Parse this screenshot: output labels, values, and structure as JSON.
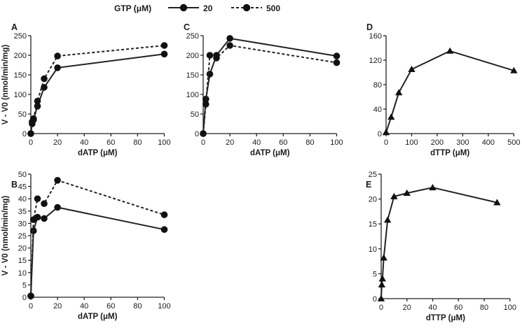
{
  "legend": {
    "title": "GTP (μM)",
    "entries": [
      {
        "label": "20",
        "style": "solid",
        "marker": "circle"
      },
      {
        "label": "500",
        "style": "dashed",
        "marker": "circle"
      }
    ]
  },
  "colors": {
    "ink": "#1a1a1a",
    "background": "#ffffff"
  },
  "chart_data": [
    {
      "panel": "A",
      "type": "line",
      "xlabel": "dATP (μM)",
      "ylabel": "V - V0 (nmol/min/mg)",
      "xlim": [
        0,
        105
      ],
      "ylim": [
        0,
        250
      ],
      "xticks": [
        0,
        20,
        40,
        60,
        80,
        100
      ],
      "yticks": [
        0,
        50,
        100,
        150,
        200,
        250
      ],
      "series": [
        {
          "name": "20",
          "style": "solid",
          "marker": "circle",
          "x": [
            0,
            1,
            2,
            5,
            10,
            20,
            100
          ],
          "y": [
            0,
            25,
            35,
            70,
            118,
            168,
            203
          ]
        },
        {
          "name": "500",
          "style": "dashed",
          "marker": "circle",
          "x": [
            0,
            1,
            2,
            5,
            10,
            20,
            100
          ],
          "y": [
            0,
            30,
            38,
            83,
            140,
            198,
            225
          ]
        }
      ]
    },
    {
      "panel": "B",
      "type": "line",
      "xlabel": "dATP (μM)",
      "ylabel": "V - V0 (nmol/min/mg)",
      "xlim": [
        0,
        105
      ],
      "ylim": [
        0,
        50
      ],
      "xticks": [
        0,
        20,
        40,
        60,
        80,
        100
      ],
      "yticks": [
        0,
        5,
        10,
        15,
        20,
        25,
        30,
        35,
        40,
        45,
        50
      ],
      "series": [
        {
          "name": "20",
          "style": "solid",
          "marker": "circle",
          "x": [
            0,
            2,
            5,
            10,
            20,
            100
          ],
          "y": [
            0.5,
            27,
            32.5,
            32,
            36.5,
            27.5
          ]
        },
        {
          "name": "500",
          "style": "dashed",
          "marker": "circle",
          "x": [
            0,
            2,
            5,
            10,
            20,
            100
          ],
          "y": [
            0.5,
            31.5,
            40,
            38,
            47.5,
            33.5
          ]
        }
      ]
    },
    {
      "panel": "C",
      "type": "line",
      "xlabel": "dATP (μM)",
      "ylabel": "",
      "xlim": [
        0,
        105
      ],
      "ylim": [
        0,
        250
      ],
      "xticks": [
        0,
        20,
        40,
        60,
        80,
        100
      ],
      "yticks": [
        0,
        50,
        100,
        150,
        200,
        250
      ],
      "series": [
        {
          "name": "20",
          "style": "solid",
          "marker": "circle",
          "x": [
            0,
            2,
            5,
            10,
            20,
            100
          ],
          "y": [
            0,
            88,
            152,
            200,
            243,
            198
          ]
        },
        {
          "name": "500",
          "style": "dashed",
          "marker": "circle",
          "x": [
            0,
            2,
            5,
            10,
            20,
            100
          ],
          "y": [
            0,
            75,
            200,
            193,
            225,
            181
          ]
        }
      ]
    },
    {
      "panel": "D",
      "type": "line",
      "xlabel": "dTTP (μM)",
      "ylabel": "",
      "xlim": [
        0,
        510
      ],
      "ylim": [
        0,
        160
      ],
      "xticks": [
        0,
        100,
        200,
        300,
        400,
        500
      ],
      "yticks": [
        0,
        40,
        80,
        120,
        160
      ],
      "series": [
        {
          "name": "dTTP",
          "style": "solid",
          "marker": "triangle",
          "x": [
            0,
            20,
            50,
            100,
            250,
            500
          ],
          "y": [
            2,
            27,
            67,
            105,
            135,
            103
          ]
        }
      ]
    },
    {
      "panel": "E",
      "type": "line",
      "xlabel": "dTTP (μM)",
      "ylabel": "",
      "xlim": [
        0,
        105
      ],
      "ylim": [
        0,
        25
      ],
      "xticks": [
        0,
        20,
        40,
        60,
        80,
        100
      ],
      "yticks": [
        0,
        5,
        10,
        15,
        20,
        25
      ],
      "series": [
        {
          "name": "dTTP",
          "style": "solid",
          "marker": "triangle",
          "x": [
            0,
            0.5,
            1,
            2,
            5,
            10,
            20,
            40,
            90
          ],
          "y": [
            0,
            2.8,
            4,
            8.2,
            15.8,
            20.5,
            21.2,
            22.3,
            19.3
          ]
        }
      ]
    }
  ]
}
